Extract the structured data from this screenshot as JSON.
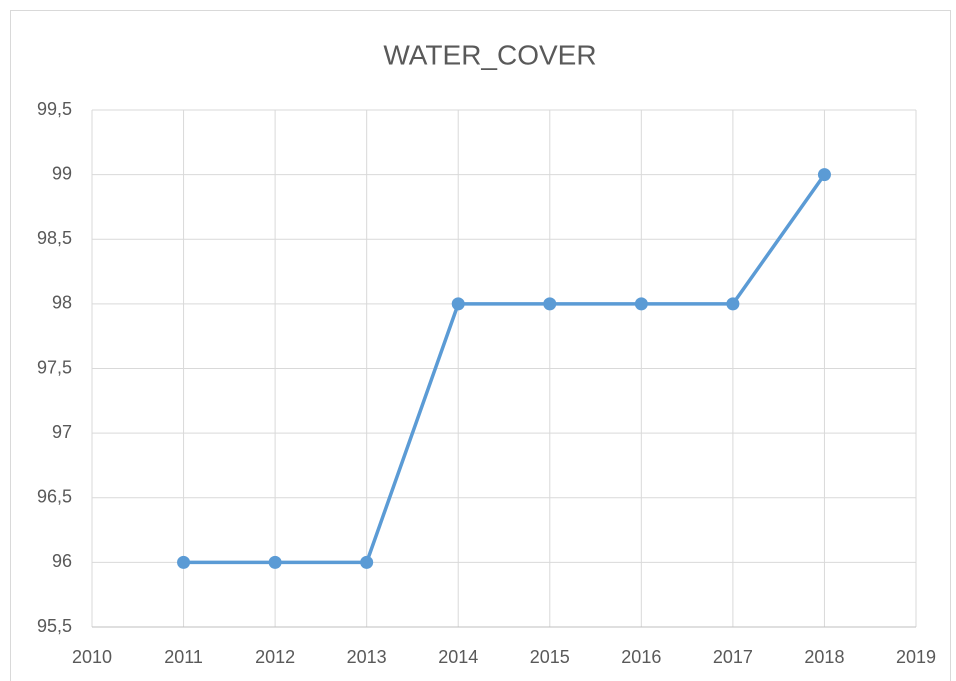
{
  "chart_data": {
    "type": "line",
    "title": "WATER_COVER",
    "x": [
      2011,
      2012,
      2013,
      2014,
      2015,
      2016,
      2017,
      2018
    ],
    "series": [
      {
        "name": "WATER_COVER",
        "color": "#5b9bd5",
        "values": [
          96,
          96,
          96,
          98,
          98,
          98,
          98,
          99
        ]
      }
    ],
    "xlim": [
      2010,
      2019
    ],
    "xticks": [
      2010,
      2011,
      2012,
      2013,
      2014,
      2015,
      2016,
      2017,
      2018,
      2019
    ],
    "ylim": [
      95.5,
      99.5
    ],
    "yticks": [
      {
        "value": 95.5,
        "label": "95,5"
      },
      96,
      {
        "value": 96.5,
        "label": "96,5"
      },
      97,
      {
        "value": 97.5,
        "label": "97,5"
      },
      98,
      {
        "value": 98.5,
        "label": "98,5"
      },
      99,
      {
        "value": 99.5,
        "label": "99,5"
      }
    ],
    "grid": true
  }
}
